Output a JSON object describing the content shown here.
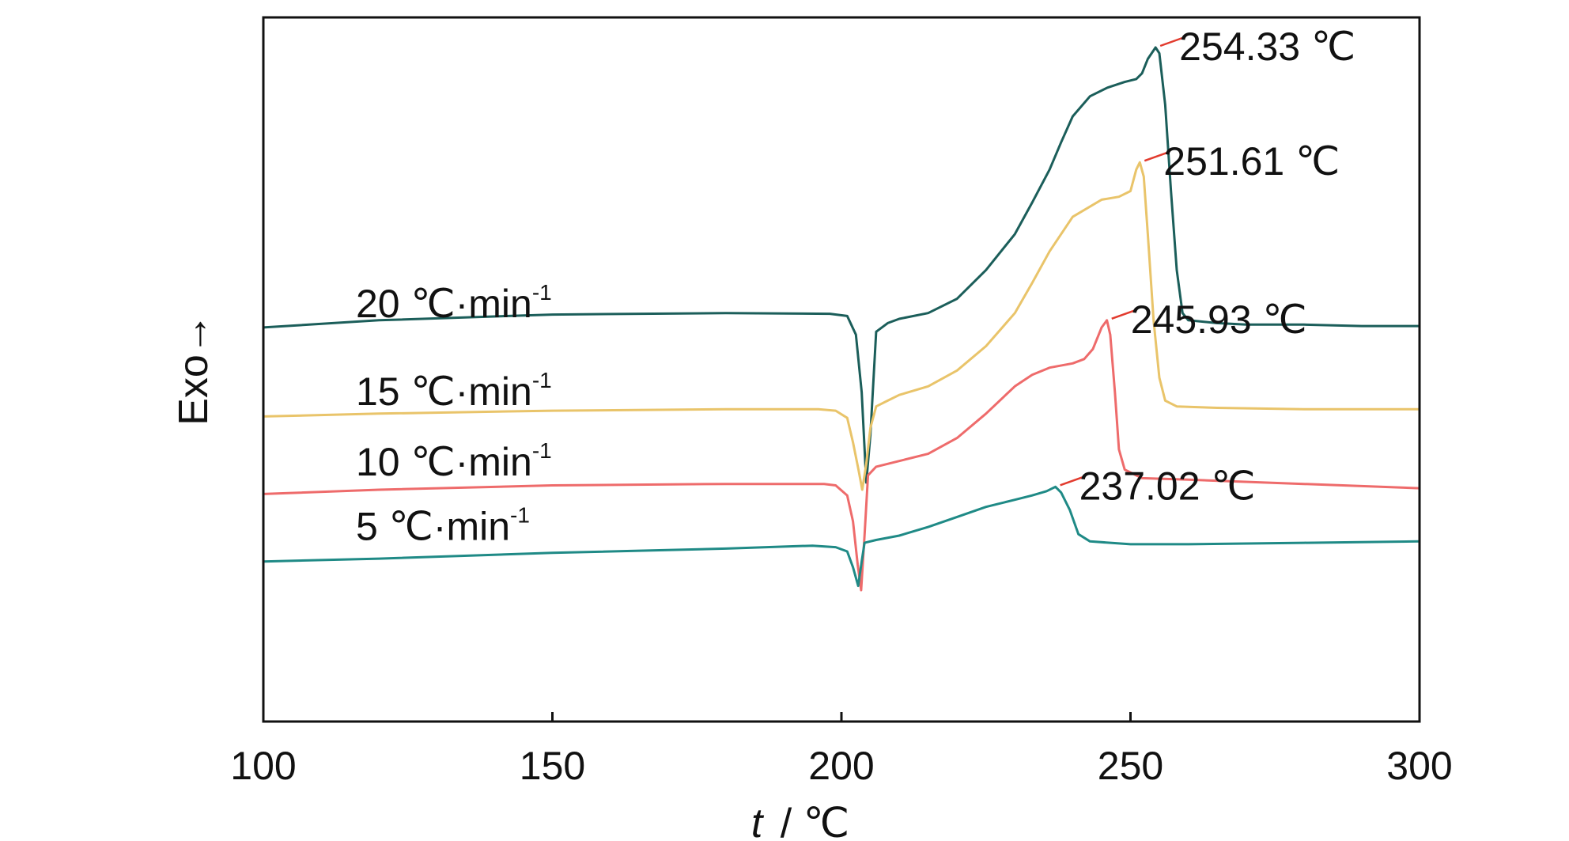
{
  "chart_data": {
    "type": "line",
    "xlabel_italic": "t",
    "xlabel_rest": "/ ℃",
    "ylabel": "Exo→",
    "xlim": [
      100,
      300
    ],
    "xticks": [
      100,
      150,
      200,
      250,
      300
    ],
    "yticks_shown": false,
    "grid": false,
    "legend": "none",
    "series": [
      {
        "name": "20 ℃·min-1",
        "rate_text": "20  ℃·min",
        "exponent": "-1",
        "color": "#1b5e5a",
        "label_at": [
          116,
          0.92
        ],
        "peak": {
          "x": 254.33,
          "text": "254.33 ℃"
        },
        "points": [
          [
            100,
            0.85
          ],
          [
            120,
            0.9
          ],
          [
            150,
            0.94
          ],
          [
            180,
            0.95
          ],
          [
            198,
            0.945
          ],
          [
            201,
            0.93
          ],
          [
            202.5,
            0.8
          ],
          [
            203.5,
            0.4
          ],
          [
            204.3,
            -0.23
          ],
          [
            205,
            0.1
          ],
          [
            206,
            0.82
          ],
          [
            208,
            0.88
          ],
          [
            210,
            0.91
          ],
          [
            215,
            0.95
          ],
          [
            220,
            1.05
          ],
          [
            225,
            1.25
          ],
          [
            230,
            1.5
          ],
          [
            233,
            1.72
          ],
          [
            236,
            1.95
          ],
          [
            238,
            2.14
          ],
          [
            240,
            2.32
          ],
          [
            243,
            2.46
          ],
          [
            246,
            2.52
          ],
          [
            249,
            2.56
          ],
          [
            251,
            2.58
          ],
          [
            252,
            2.62
          ],
          [
            253,
            2.72
          ],
          [
            254.33,
            2.8
          ],
          [
            255,
            2.76
          ],
          [
            256,
            2.4
          ],
          [
            257,
            1.8
          ],
          [
            258,
            1.25
          ],
          [
            259,
            0.95
          ],
          [
            260,
            0.9
          ],
          [
            265,
            0.88
          ],
          [
            270,
            0.87
          ],
          [
            280,
            0.87
          ],
          [
            290,
            0.86
          ],
          [
            300,
            0.86
          ]
        ]
      },
      {
        "name": "15 ℃·min-1",
        "rate_text": "15  ℃·min",
        "exponent": "-1",
        "color": "#e9c46a",
        "label_at": [
          116,
          0.31
        ],
        "peak": {
          "x": 251.61,
          "text": "251.61 ℃"
        },
        "points": [
          [
            100,
            0.23
          ],
          [
            120,
            0.25
          ],
          [
            150,
            0.27
          ],
          [
            180,
            0.28
          ],
          [
            196,
            0.28
          ],
          [
            199,
            0.27
          ],
          [
            201,
            0.22
          ],
          [
            202,
            0.05
          ],
          [
            203,
            -0.15
          ],
          [
            203.6,
            -0.28
          ],
          [
            204.3,
            -0.1
          ],
          [
            205,
            0.15
          ],
          [
            206,
            0.3
          ],
          [
            208,
            0.34
          ],
          [
            210,
            0.38
          ],
          [
            215,
            0.44
          ],
          [
            220,
            0.55
          ],
          [
            225,
            0.72
          ],
          [
            230,
            0.95
          ],
          [
            233,
            1.16
          ],
          [
            236,
            1.38
          ],
          [
            240,
            1.62
          ],
          [
            245,
            1.74
          ],
          [
            248,
            1.76
          ],
          [
            250,
            1.8
          ],
          [
            251,
            1.95
          ],
          [
            251.61,
            2.0
          ],
          [
            252.3,
            1.9
          ],
          [
            253,
            1.5
          ],
          [
            254,
            0.9
          ],
          [
            255,
            0.5
          ],
          [
            256,
            0.34
          ],
          [
            258,
            0.3
          ],
          [
            265,
            0.29
          ],
          [
            280,
            0.28
          ],
          [
            300,
            0.28
          ]
        ]
      },
      {
        "name": "10 ℃·min-1",
        "rate_text": "10  ℃·min",
        "exponent": "-1",
        "color": "#ee6b6b",
        "label_at": [
          116,
          -0.18
        ],
        "peak": {
          "x": 245.93,
          "text": "245.93 ℃"
        },
        "points": [
          [
            100,
            -0.31
          ],
          [
            120,
            -0.28
          ],
          [
            150,
            -0.25
          ],
          [
            180,
            -0.24
          ],
          [
            197,
            -0.24
          ],
          [
            199,
            -0.25
          ],
          [
            201,
            -0.32
          ],
          [
            202,
            -0.5
          ],
          [
            202.8,
            -0.8
          ],
          [
            203.4,
            -0.98
          ],
          [
            204,
            -0.6
          ],
          [
            204.6,
            -0.18
          ],
          [
            206,
            -0.12
          ],
          [
            210,
            -0.08
          ],
          [
            215,
            -0.03
          ],
          [
            220,
            0.08
          ],
          [
            225,
            0.25
          ],
          [
            230,
            0.44
          ],
          [
            233,
            0.52
          ],
          [
            236,
            0.57
          ],
          [
            240,
            0.6
          ],
          [
            242,
            0.63
          ],
          [
            243.5,
            0.7
          ],
          [
            245,
            0.85
          ],
          [
            245.93,
            0.9
          ],
          [
            246.5,
            0.8
          ],
          [
            247.3,
            0.4
          ],
          [
            248,
            0.0
          ],
          [
            249,
            -0.14
          ],
          [
            252,
            -0.2
          ],
          [
            260,
            -0.21
          ],
          [
            280,
            -0.24
          ],
          [
            300,
            -0.27
          ]
        ]
      },
      {
        "name": "5 ℃·min-1",
        "rate_text": "5  ℃·min",
        "exponent": "-1",
        "color": "#1f8a86",
        "label_at": [
          116,
          -0.63
        ],
        "peak": {
          "x": 237.02,
          "text": "237.02 ℃"
        },
        "points": [
          [
            100,
            -0.78
          ],
          [
            120,
            -0.76
          ],
          [
            150,
            -0.72
          ],
          [
            180,
            -0.69
          ],
          [
            195,
            -0.67
          ],
          [
            199,
            -0.68
          ],
          [
            201,
            -0.71
          ],
          [
            202,
            -0.82
          ],
          [
            202.9,
            -0.95
          ],
          [
            203.5,
            -0.78
          ],
          [
            204,
            -0.65
          ],
          [
            206,
            -0.63
          ],
          [
            210,
            -0.6
          ],
          [
            215,
            -0.54
          ],
          [
            220,
            -0.47
          ],
          [
            225,
            -0.4
          ],
          [
            230,
            -0.35
          ],
          [
            233,
            -0.32
          ],
          [
            235.5,
            -0.29
          ],
          [
            237.02,
            -0.26
          ],
          [
            238,
            -0.3
          ],
          [
            239.5,
            -0.42
          ],
          [
            241,
            -0.59
          ],
          [
            243,
            -0.64
          ],
          [
            250,
            -0.66
          ],
          [
            260,
            -0.66
          ],
          [
            280,
            -0.65
          ],
          [
            300,
            -0.64
          ]
        ]
      }
    ]
  }
}
